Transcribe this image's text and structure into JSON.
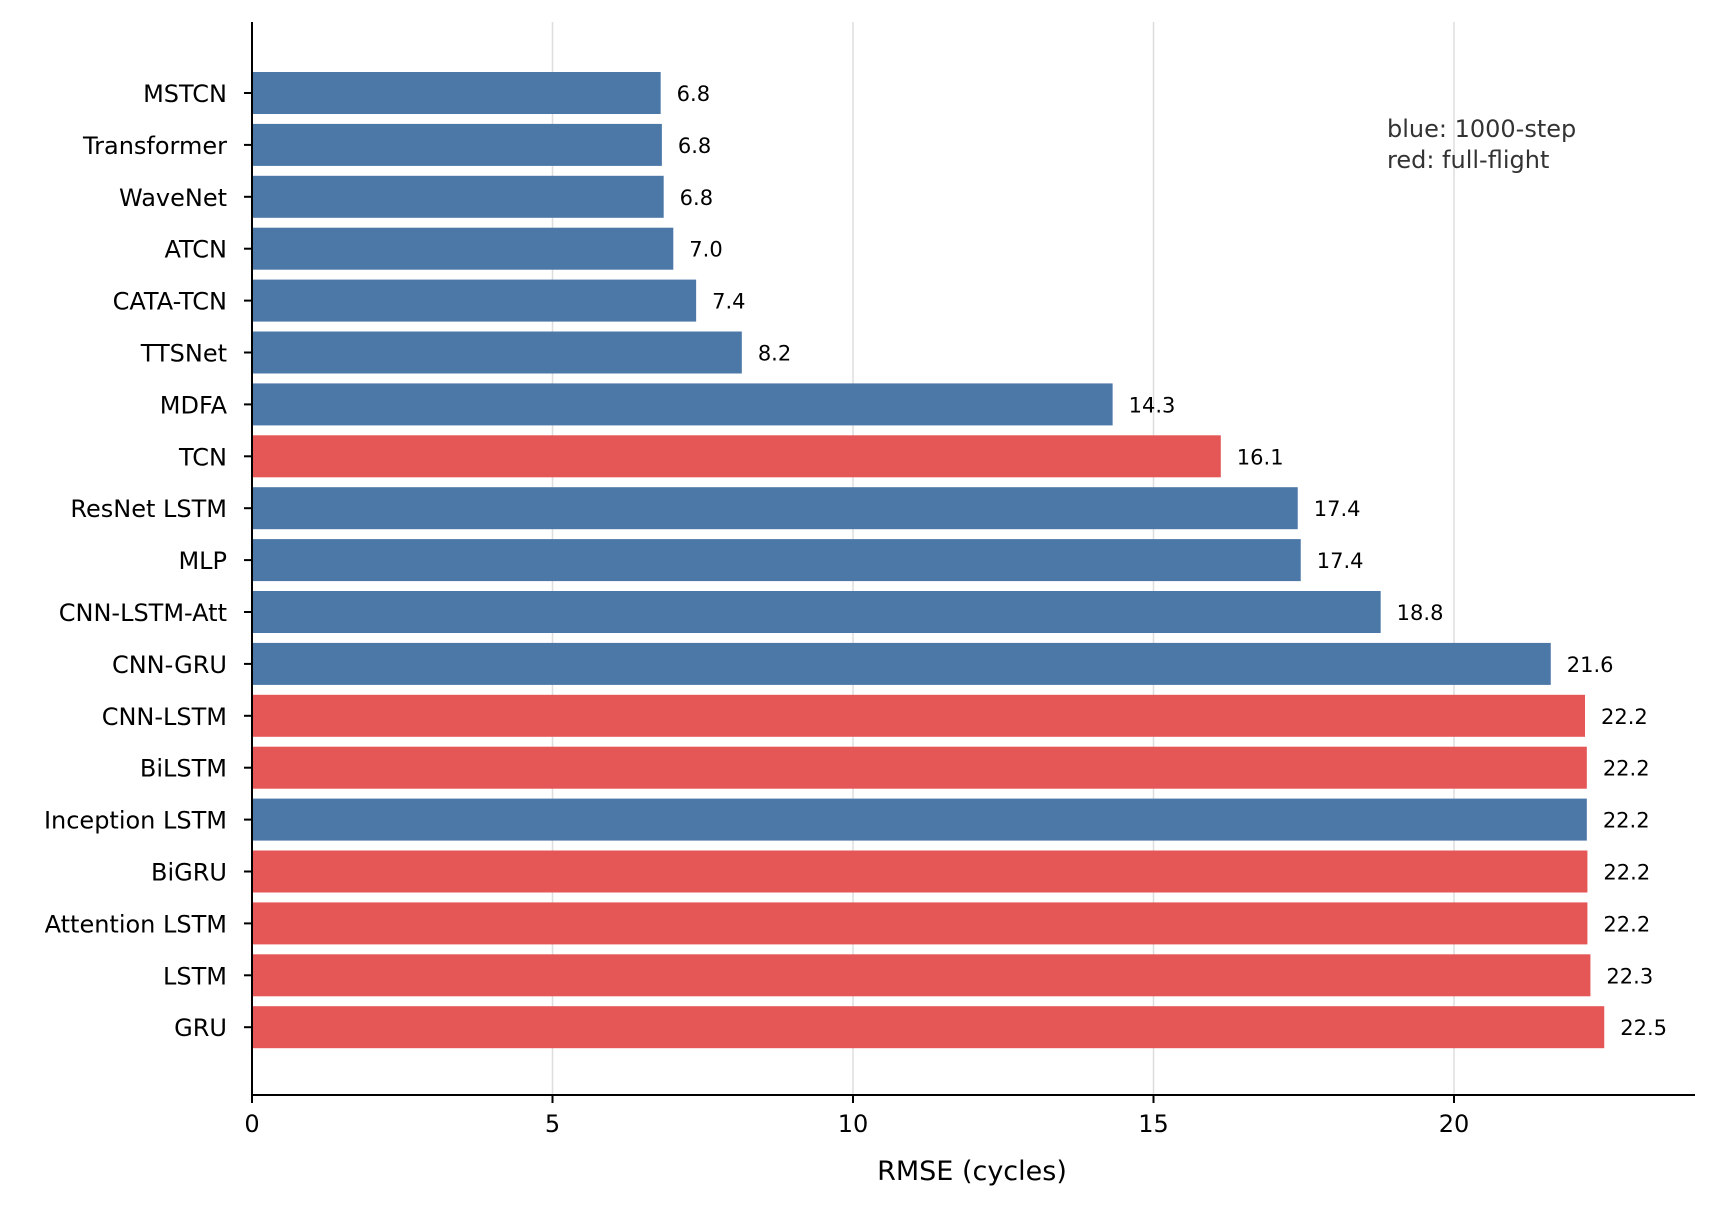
{
  "chart_data": {
    "type": "bar",
    "orientation": "horizontal",
    "title": "",
    "xlabel": "RMSE (cycles)",
    "ylabel": "",
    "xlim": [
      0,
      24
    ],
    "x_ticks": [
      0,
      5,
      10,
      15,
      20
    ],
    "grid": "vertical gridlines on",
    "categories": [
      "MSTCN",
      "Transformer",
      "WaveNet",
      "ATCN",
      "CATA-TCN",
      "TTSNet",
      "MDFA",
      "TCN",
      "ResNet LSTM",
      "MLP",
      "CNN-LSTM-Att",
      "CNN-GRU",
      "CNN-LSTM",
      "BiLSTM",
      "Inception LSTM",
      "BiGRU",
      "Attention LSTM",
      "LSTM",
      "GRU"
    ],
    "values": [
      6.8,
      6.82,
      6.85,
      7.01,
      7.39,
      8.15,
      14.32,
      16.12,
      17.4,
      17.45,
      18.78,
      21.61,
      22.18,
      22.21,
      22.21,
      22.22,
      22.22,
      22.27,
      22.5
    ],
    "value_labels": [
      "6.8",
      "6.8",
      "6.8",
      "7.0",
      "7.4",
      "8.2",
      "14.3",
      "16.1",
      "17.4",
      "17.4",
      "18.8",
      "21.6",
      "22.2",
      "22.2",
      "22.2",
      "22.2",
      "22.2",
      "22.3",
      "22.5"
    ],
    "groups": [
      "blue",
      "blue",
      "blue",
      "blue",
      "blue",
      "blue",
      "blue",
      "red",
      "blue",
      "blue",
      "blue",
      "blue",
      "red",
      "red",
      "blue",
      "red",
      "red",
      "red",
      "red"
    ],
    "colors": {
      "blue": "#4c78a8",
      "red": "#e45756",
      "grid": "#dddddd",
      "axis": "#000000",
      "annotation": "#333333"
    },
    "annotation": [
      "blue: 1000-step",
      "red: full-flight"
    ]
  }
}
